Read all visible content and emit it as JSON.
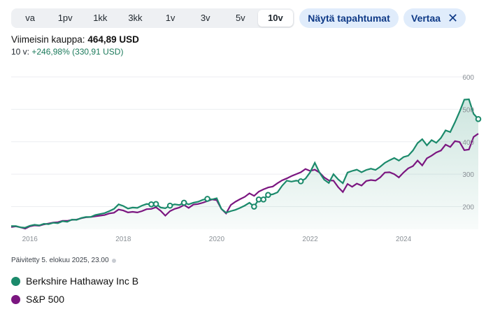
{
  "ranges": [
    "va",
    "1pv",
    "1kk",
    "3kk",
    "1v",
    "3v",
    "5v",
    "10v"
  ],
  "active_range": "10v",
  "events_button": "Näytä tapahtumat",
  "compare_button": "Vertaa",
  "last_trade": {
    "label": "Viimeisin kauppa:",
    "value": "464,89 USD"
  },
  "change": {
    "label": "10 v:",
    "value": "+246,98% (330,91 USD)"
  },
  "updated_text": "Päivitetty 5. elokuu 2025, 23.00",
  "colors": {
    "brk": "#1b8a6b",
    "sp": "#7b1680",
    "accent": "#0f3a87"
  },
  "chart_data": {
    "type": "line",
    "x": [
      2015.6,
      2015.7,
      2015.8,
      2015.9,
      2016.0,
      2016.1,
      2016.2,
      2016.3,
      2016.4,
      2016.5,
      2016.6,
      2016.7,
      2016.8,
      2016.9,
      2017.0,
      2017.1,
      2017.2,
      2017.3,
      2017.4,
      2017.5,
      2017.6,
      2017.7,
      2017.8,
      2017.9,
      2018.0,
      2018.1,
      2018.2,
      2018.3,
      2018.4,
      2018.5,
      2018.6,
      2018.7,
      2018.8,
      2018.9,
      2019.0,
      2019.1,
      2019.2,
      2019.3,
      2019.4,
      2019.5,
      2019.6,
      2019.7,
      2019.8,
      2019.9,
      2020.0,
      2020.1,
      2020.2,
      2020.3,
      2020.4,
      2020.5,
      2020.6,
      2020.7,
      2020.8,
      2020.9,
      2021.0,
      2021.1,
      2021.2,
      2021.3,
      2021.4,
      2021.5,
      2021.6,
      2021.7,
      2021.8,
      2021.9,
      2022.0,
      2022.1,
      2022.2,
      2022.3,
      2022.4,
      2022.5,
      2022.6,
      2022.7,
      2022.8,
      2022.9,
      2023.0,
      2023.1,
      2023.2,
      2023.3,
      2023.4,
      2023.5,
      2023.6,
      2023.7,
      2023.8,
      2023.9,
      2024.0,
      2024.1,
      2024.2,
      2024.3,
      2024.4,
      2024.5,
      2024.6,
      2024.7,
      2024.8,
      2024.9,
      2025.0,
      2025.1,
      2025.2,
      2025.3,
      2025.4,
      2025.5,
      2025.6
    ],
    "xticks": [
      "2016",
      "2018",
      "2020",
      "2022",
      "2024"
    ],
    "yticks": [
      "200",
      "300",
      "400",
      "500",
      "600"
    ],
    "ylim": [
      130,
      600
    ],
    "xlim": [
      2015.6,
      2025.6
    ],
    "series": [
      {
        "name": "Berkshire Hathaway Inc B",
        "values": [
          140,
          140,
          136,
          135,
          141,
          144,
          142,
          147,
          146,
          150,
          149,
          155,
          153,
          160,
          159,
          165,
          168,
          168,
          174,
          177,
          180,
          186,
          193,
          207,
          202,
          194,
          197,
          196,
          203,
          208,
          207,
          208,
          197,
          195,
          203,
          207,
          205,
          212,
          207,
          212,
          215,
          221,
          224,
          222,
          226,
          193,
          181,
          186,
          190,
          196,
          203,
          212,
          200,
          222,
          222,
          236,
          238,
          244,
          264,
          280,
          277,
          280,
          278,
          286,
          306,
          335,
          305,
          283,
          273,
          300,
          284,
          272,
          305,
          310,
          314,
          306,
          313,
          317,
          313,
          323,
          335,
          343,
          350,
          342,
          353,
          357,
          373,
          396,
          408,
          389,
          405,
          397,
          412,
          435,
          430,
          460,
          493,
          530,
          531,
          486,
          470
        ],
        "events": [
          2018.6,
          2018.7,
          2019.0,
          2019.3,
          2019.8,
          2020.8,
          2020.9,
          2021.0,
          2021.1,
          2021.8,
          2025.6
        ]
      },
      {
        "name": "S&P 500",
        "values": [
          137,
          139,
          136,
          132,
          139,
          142,
          141,
          145,
          148,
          151,
          152,
          156,
          156,
          159,
          160,
          164,
          167,
          168,
          170,
          172,
          174,
          179,
          181,
          191,
          188,
          182,
          184,
          182,
          186,
          192,
          193,
          198,
          187,
          172,
          186,
          193,
          197,
          205,
          196,
          206,
          208,
          212,
          217,
          222,
          220,
          193,
          179,
          205,
          215,
          223,
          230,
          241,
          233,
          246,
          253,
          259,
          262,
          272,
          281,
          287,
          294,
          300,
          306,
          316,
          310,
          314,
          305,
          290,
          281,
          280,
          260,
          245,
          270,
          261,
          271,
          265,
          279,
          282,
          280,
          290,
          305,
          306,
          300,
          290,
          305,
          318,
          325,
          342,
          327,
          349,
          357,
          367,
          373,
          391,
          384,
          402,
          399,
          374,
          376,
          415,
          425
        ]
      }
    ]
  },
  "legend": [
    {
      "name": "Berkshire Hathaway Inc B"
    },
    {
      "name": "S&P 500"
    }
  ]
}
